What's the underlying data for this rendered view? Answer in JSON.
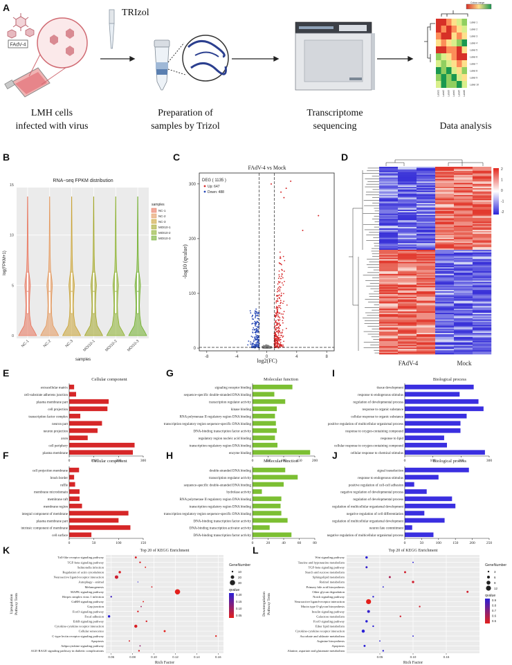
{
  "panel_letters": [
    "A",
    "B",
    "C",
    "D",
    "E",
    "F",
    "G",
    "H",
    "I",
    "J",
    "K",
    "L"
  ],
  "workflow": {
    "virus_label": "FAdV-4",
    "trizol_label": "TRIzol",
    "steps": [
      {
        "line1": "LMH cells",
        "line2": "infected with virus"
      },
      {
        "line1": "Preparation of",
        "line2": "samples by Trizol"
      },
      {
        "line1": "Transcriptome",
        "line2": "sequencing"
      },
      {
        "line1": "Data analysis",
        "line2": ""
      }
    ],
    "mini_heatmap": {
      "legend_title": "Colour range",
      "row_labels": [
        "Label 1",
        "Label 2",
        "Label 3",
        "Label 4",
        "Label 5",
        "Label 6",
        "Label 7",
        "Label 8",
        "Label 9",
        "Label 10"
      ],
      "col_labels": [
        "Label1",
        "Label2",
        "Label3",
        "Label4",
        "Label5",
        "Label6"
      ],
      "colors": [
        "#d73027",
        "#fc8d59",
        "#fee08b",
        "#d9ef8b",
        "#91cf60",
        "#1a9850"
      ]
    }
  },
  "chart_data": [
    {
      "panel": "B",
      "type": "violin",
      "title": "RNA−seq FPKM distribution",
      "xlabel": "samples",
      "ylabel": "log(FPKM+1)",
      "ylim": [
        0,
        15
      ],
      "yticks": [
        0,
        5,
        10,
        15
      ],
      "categories": [
        "NC-1",
        "NC-2",
        "NC-3",
        "MOI10-1",
        "MOI10-2",
        "MOI10-3"
      ],
      "legend_title": "samples",
      "colors": [
        "#e8735a",
        "#e3975b",
        "#c9a233",
        "#a3a626",
        "#8bb02c",
        "#6fae2a"
      ]
    },
    {
      "panel": "C",
      "type": "scatter",
      "title": "FAdV-4 vs Mock",
      "xlabel": "log2(FC)",
      "ylabel": "-log10 (qvalue)",
      "xlim": [
        -9,
        9
      ],
      "ylim": [
        -5,
        320
      ],
      "xticks": [
        -8,
        -4,
        0,
        4,
        8
      ],
      "yticks": [
        0,
        100,
        200,
        300
      ],
      "legend": {
        "title": "DEG ( 1135 )",
        "up": "Up: 647",
        "down": "Down: 488"
      },
      "thresholds": {
        "fc": [
          -1,
          1
        ],
        "q": 1.3
      }
    },
    {
      "panel": "D",
      "type": "heatmap",
      "column_groups": [
        "FAdV-4",
        "Mock"
      ],
      "scale_ticks": [
        "2",
        "1",
        "0",
        "-1",
        "-2"
      ]
    },
    {
      "panel": "E",
      "type": "bar",
      "title": "Cellular component",
      "categories": [
        "extracellular matrix",
        "cell-substrate adherens junction",
        "plasma membrane part",
        "cell projection",
        "transcription factor complex",
        "neuron part",
        "neuron projection",
        "axon",
        "cell periphery",
        "plasma membrane"
      ],
      "values": [
        20,
        28,
        160,
        155,
        45,
        133,
        115,
        75,
        265,
        258
      ],
      "xlim": [
        0,
        300
      ],
      "xticks": [
        0,
        100,
        200,
        300
      ],
      "color": "#d62728"
    },
    {
      "panel": "F",
      "type": "bar",
      "title": "Cellular component",
      "categories": [
        "cell projection membrane",
        "brush border",
        "ruffle",
        "membrane microdomain",
        "membrane raft",
        "membrane region",
        "integral component of membrane",
        "plasma membrane part",
        "intrinsic component of membrane",
        "cell surface"
      ],
      "values": [
        20,
        10,
        12,
        21,
        21,
        26,
        120,
        100,
        124,
        45
      ],
      "xlim": [
        0,
        150
      ],
      "xticks": [
        0,
        50,
        100,
        150
      ],
      "color": "#d62728"
    },
    {
      "panel": "G",
      "type": "bar",
      "title": "Molecular function",
      "categories": [
        "signaling receptor binding",
        "sequence-specific double-stranded DNA binding",
        "transcription regulator activity",
        "kinase binding",
        "RNA polymerase II regulatory region DNA binding",
        "transcription regulatory region sequence-specific DNA binding",
        "DNA-binding transcription factor activity",
        "regulatory region nucleic acid binding",
        "transcription regulatory region DNA binding",
        "enzyme binding"
      ],
      "values": [
        128,
        70,
        105,
        78,
        72,
        75,
        78,
        72,
        80,
        185
      ],
      "xlim": [
        0,
        200
      ],
      "xticks": [
        0,
        50,
        100,
        150,
        200
      ],
      "color": "#7cbf33"
    },
    {
      "panel": "H",
      "type": "bar",
      "title": "Molecular function",
      "categories": [
        "double-stranded DNA binding",
        "transcription regulator activity",
        "sequence-specific double-stranded DNA binding",
        "hydrolase activity",
        "RNA polymerase II regulatory region DNA binding",
        "transcription regulatory region DNA binding",
        "transcription regulatory region sequence-specific DNA binding",
        "DNA-binding transcription factor activity",
        "DNA-binding transcription activator activity",
        "DNA-binding transcription factor activity"
      ],
      "values": [
        42,
        58,
        40,
        12,
        37,
        36,
        37,
        45,
        22,
        50
      ],
      "xlim": [
        0,
        80
      ],
      "xticks": [
        0,
        20,
        40,
        60,
        80
      ],
      "color": "#7cbf33"
    },
    {
      "panel": "I",
      "type": "bar",
      "title": "Biological process",
      "categories": [
        "tissue development",
        "response to endogenous stimulus",
        "regulation of developmental process",
        "response to organic substance",
        "cellular response to organic substance",
        "positive regulation of multicellular organismal process",
        "response to oxygen-containing compound",
        "response to lipid",
        "cellular response to oxygen-containing compound",
        "cellular response to chemical stimulus"
      ],
      "values": [
        245,
        195,
        262,
        280,
        220,
        198,
        198,
        140,
        150,
        285
      ],
      "xlim": [
        0,
        300
      ],
      "xticks": [
        0,
        100,
        200,
        300
      ],
      "color": "#3a2fe0"
    },
    {
      "panel": "J",
      "type": "bar",
      "title": "Biological process",
      "categories": [
        "signal transduction",
        "response to endogenous stimulus",
        "positive regulation of cell-cell adhesion",
        "negative regulation of developmental process",
        "regulation of developmental process",
        "regulation of multicellular organismal development",
        "negative regulation of cell differentiation",
        "regulation of multicellular organismal development",
        "neuron fate commitment",
        "negative regulation of multicellular organismal process"
      ],
      "values": [
        190,
        100,
        28,
        65,
        140,
        150,
        58,
        118,
        22,
        85
      ],
      "xlim": [
        0,
        250
      ],
      "xticks": [
        0,
        50,
        100,
        150,
        200,
        250
      ],
      "color": "#3a2fe0"
    },
    {
      "panel": "K",
      "type": "scatter",
      "title": "Top 20 of KEGG Enrichment",
      "xlabel": "Rich Factor",
      "ylabel": "Upregulation\nPathway Term",
      "xlim": [
        0.055,
        0.165
      ],
      "xticks": [
        0.06,
        0.08,
        0.1,
        0.12,
        0.14,
        0.16
      ],
      "xtick_labels": [
        "0.06",
        "0.08",
        "0.10",
        "0.12",
        "0.14",
        "0.16"
      ],
      "categories": [
        "Toll-like receptor signaling pathway",
        "TGF-beta signaling pathway",
        "Salmonella infection",
        "Regulation of actin cytoskeleton",
        "Neuroactive ligand-receptor interaction",
        "Autophagy - animal",
        "Melanogenesis",
        "MAPK signaling pathway",
        "Herpes simplex virus 1 infection",
        "GnRH signaling pathway",
        "Gap junction",
        "FoxO signaling pathway",
        "Focal adhesion",
        "ErbB signaling pathway",
        "Cytokine-cytokine receptor interaction",
        "Cellular senescence",
        "C-type lectin receptor signaling pathway",
        "Apoptosis",
        "Adipocytokine signaling pathway",
        "AGE-RAGE signaling pathway in diabetic complications"
      ],
      "rich_factor": [
        0.083,
        0.087,
        0.092,
        0.068,
        0.065,
        0.085,
        0.098,
        0.122,
        0.06,
        0.09,
        0.088,
        0.085,
        0.058,
        0.093,
        0.083,
        0.11,
        0.158,
        0.077,
        0.087,
        0.086
      ],
      "gene_number": [
        12,
        10,
        8,
        14,
        20,
        6,
        8,
        30,
        10,
        8,
        8,
        10,
        14,
        10,
        18,
        12,
        10,
        8,
        8,
        10
      ],
      "qvalue": [
        0.05,
        0.05,
        0.04,
        0.05,
        0.06,
        0.22,
        0.05,
        0.04,
        0.2,
        0.04,
        0.1,
        0.05,
        0.22,
        0.05,
        0.05,
        0.04,
        0.04,
        0.05,
        0.12,
        0.05
      ],
      "size_legend": {
        "title": "GeneNumber",
        "values": [
          "10",
          "20",
          "30"
        ]
      },
      "color_legend": {
        "title": "qvalue",
        "values": [
          "0.20",
          "0.15",
          "0.10",
          "0.05"
        ]
      }
    },
    {
      "panel": "L",
      "type": "scatter",
      "title": "Top 20 of KEGG Enrichment",
      "xlabel": "Rich Factor",
      "ylabel": "Downregulation\nPathway Term",
      "xlim": [
        0.0,
        0.2
      ],
      "xticks": [
        0.05,
        0.1,
        0.15
      ],
      "xtick_labels": [
        "0.05",
        "0.10",
        "0.15"
      ],
      "categories": [
        "Wnt signaling pathway",
        "Taurine and hypotaurine metabolism",
        "TGF-beta signaling pathway",
        "Starch and sucrose metabolism",
        "Sphingolipid metabolism",
        "Retinol metabolism",
        "Primary bile acid biosynthesis",
        "Other glycan degradation",
        "Notch signaling pathway",
        "Neuroactive ligand-receptor interaction",
        "Mucin type O-glycan biosynthesis",
        "Insulin signaling pathway",
        "Galactose metabolism",
        "FoxO signaling pathway",
        "Ether lipid metabolism",
        "Cytokine-cytokine receptor interaction",
        "Ascorbate and aldarate metabolism",
        "Arginine biosynthesis",
        "Apoptosis",
        "Alanine, aspartate and glutamate metabolism"
      ],
      "rich_factor": [
        0.03,
        0.1,
        0.03,
        0.088,
        0.065,
        0.1,
        0.055,
        0.182,
        0.04,
        0.033,
        0.11,
        0.033,
        0.081,
        0.03,
        0.04,
        0.025,
        0.1,
        0.05,
        0.027,
        0.055
      ],
      "gene_number": [
        5,
        2,
        4,
        4,
        4,
        5,
        2,
        4,
        3,
        12,
        3,
        6,
        3,
        5,
        3,
        7,
        2,
        2,
        4,
        3
      ],
      "qvalue": [
        0.95,
        0.95,
        0.92,
        0.5,
        0.6,
        0.5,
        0.95,
        0.5,
        0.95,
        0.45,
        0.5,
        0.92,
        0.5,
        0.95,
        0.95,
        0.95,
        0.95,
        0.95,
        0.95,
        0.95
      ],
      "size_legend": {
        "title": "GeneNumber",
        "values": [
          "3",
          "6",
          "9",
          "12"
        ]
      },
      "color_legend": {
        "title": "qvalue",
        "values": [
          "0.9",
          "0.8",
          "0.7",
          "0.6",
          "0.5"
        ]
      }
    }
  ]
}
